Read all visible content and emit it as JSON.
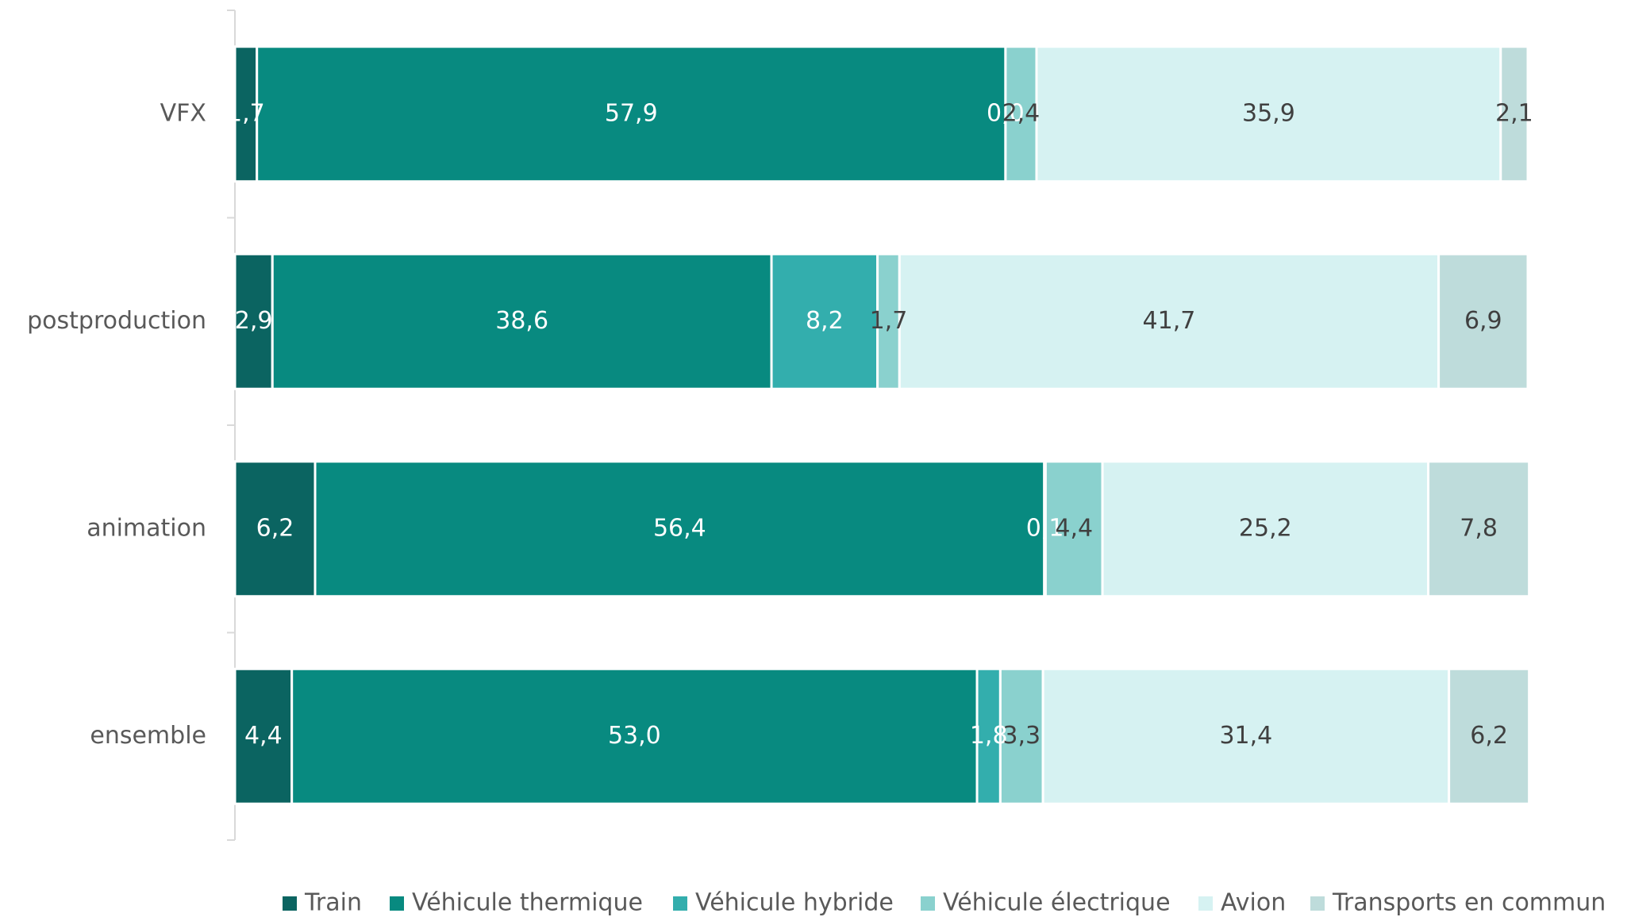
{
  "chart_data": {
    "type": "stacked_barh",
    "categories": [
      "VFX",
      "postproduction",
      "animation",
      "ensemble"
    ],
    "xlim": [
      0,
      100
    ],
    "legend": "bottom",
    "series": [
      {
        "name": "Train",
        "color": "#0b6461",
        "values": [
          1.7,
          2.9,
          6.2,
          4.4
        ],
        "value_labels": [
          "1,7",
          "2,9",
          "6,2",
          "4,4"
        ]
      },
      {
        "name": "Véhicule thermique",
        "color": "#088a80",
        "values": [
          57.9,
          38.6,
          56.4,
          53.0
        ],
        "value_labels": [
          "57,9",
          "38,6",
          "56,4",
          "53,0"
        ]
      },
      {
        "name": "Véhicule hybride",
        "color": "#33aead",
        "values": [
          0.0,
          8.2,
          0.1,
          1.8
        ],
        "value_labels": [
          "0,0",
          "8,2",
          "0,1",
          "1,8"
        ]
      },
      {
        "name": "Véhicule électrique",
        "color": "#8ad1ce",
        "values": [
          2.4,
          1.7,
          4.4,
          3.3
        ],
        "value_labels": [
          "2,4",
          "1,7",
          "4,4",
          "3,3"
        ]
      },
      {
        "name": "Avion",
        "color": "#d6f2f2",
        "values": [
          35.9,
          41.7,
          25.2,
          31.4
        ],
        "value_labels": [
          "35,9",
          "41,7",
          "25,2",
          "31,4"
        ]
      },
      {
        "name": "Transports en commun",
        "color": "#bedcdb",
        "values": [
          2.1,
          6.9,
          7.8,
          6.2
        ],
        "value_labels": [
          "2,1",
          "6,9",
          "7,8",
          "6,2"
        ]
      }
    ]
  }
}
